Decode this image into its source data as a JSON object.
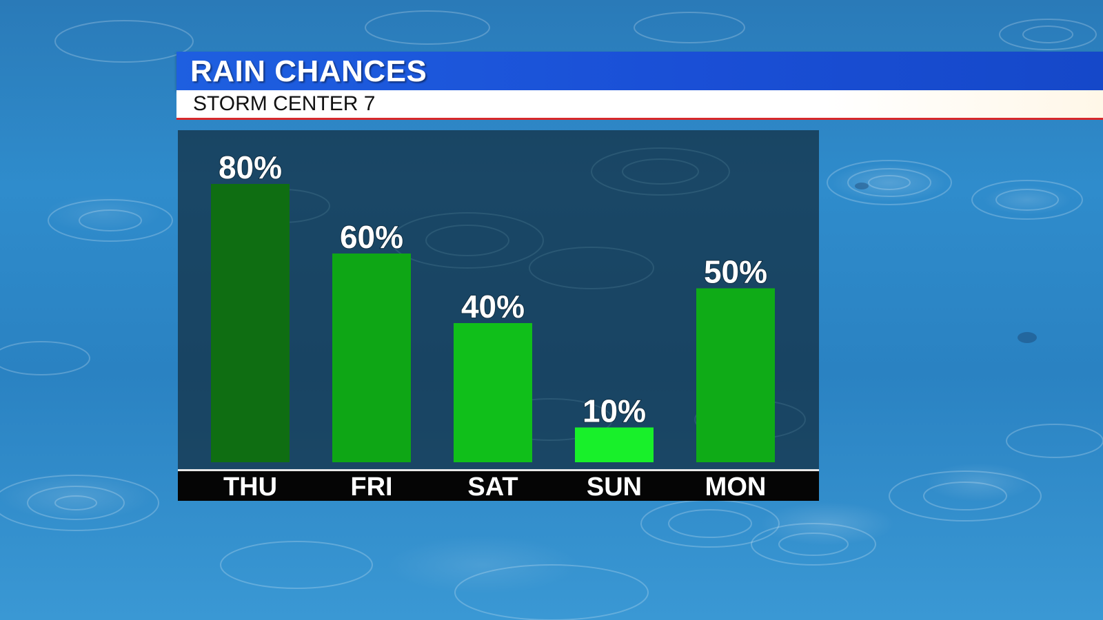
{
  "header": {
    "title": "RAIN CHANCES",
    "subtitle": "STORM CENTER 7"
  },
  "colors": {
    "title_bar": "#1e5fe0",
    "subtitle_bar": "#ffffff",
    "accent_line": "#d8282a",
    "panel": "#122c3e",
    "axis_strip": "#050505"
  },
  "chart_data": {
    "type": "bar",
    "title": "RAIN CHANCES",
    "subtitle": "STORM CENTER 7",
    "categories": [
      "THU",
      "FRI",
      "SAT",
      "SUN",
      "MON"
    ],
    "values": [
      80,
      60,
      40,
      10,
      50
    ],
    "value_labels": [
      "80%",
      "60%",
      "40%",
      "10%",
      "50%"
    ],
    "unit": "%",
    "ylim": [
      0,
      100
    ],
    "grid": false,
    "legend": "none",
    "bar_colors": [
      "#0f6e12",
      "#0ea615",
      "#10bf1a",
      "#18f02a",
      "#0fab17"
    ]
  }
}
